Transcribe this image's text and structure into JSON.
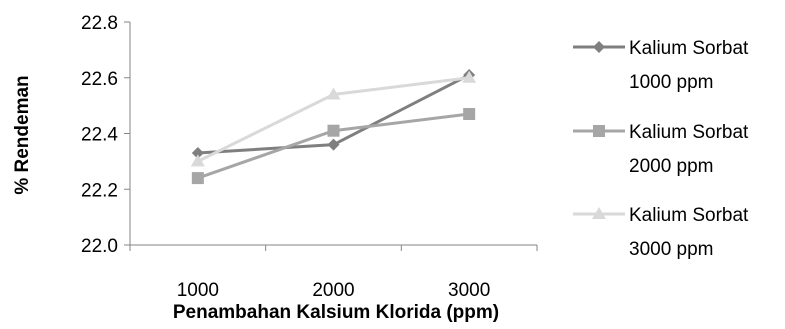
{
  "chart_data": {
    "type": "line",
    "title": "",
    "xlabel": "Penambahan Kalsium Klorida (ppm)",
    "ylabel": "% Rendeman",
    "categories": [
      "1000",
      "2000",
      "3000"
    ],
    "ylim": [
      22.0,
      22.8
    ],
    "yticks": [
      "22.0",
      "22.2",
      "22.4",
      "22.6",
      "22.8"
    ],
    "grid": false,
    "legend_position": "right",
    "series": [
      {
        "name_line1": "Kalium Sorbat",
        "name_line2": "1000 ppm",
        "marker": "diamond",
        "color": "#7f7f7f",
        "values": [
          22.33,
          22.36,
          22.61
        ]
      },
      {
        "name_line1": "Kalium Sorbat",
        "name_line2": "2000 ppm",
        "marker": "square",
        "color": "#a6a6a6",
        "values": [
          22.24,
          22.41,
          22.47
        ]
      },
      {
        "name_line1": "Kalium Sorbat",
        "name_line2": "3000 ppm",
        "marker": "triangle",
        "color": "#d9d9d9",
        "values": [
          22.3,
          22.54,
          22.6
        ]
      }
    ]
  }
}
